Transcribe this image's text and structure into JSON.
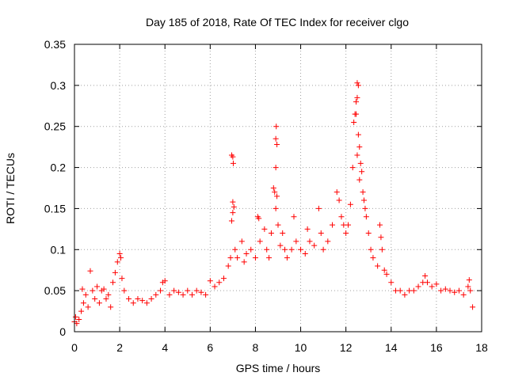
{
  "chart_data": {
    "type": "scatter",
    "title": "Day 185 of 2018, Rate Of TEC Index for receiver clgo",
    "xlabel": "GPS time / hours",
    "ylabel": "ROTI / TECUs",
    "xlim": [
      0,
      18
    ],
    "ylim": [
      0,
      0.35
    ],
    "xticks": [
      "0",
      "2",
      "4",
      "6",
      "8",
      "10",
      "12",
      "14",
      "16",
      "18"
    ],
    "yticks": [
      "0",
      "0.05",
      "0.1",
      "0.15",
      "0.2",
      "0.25",
      "0.3",
      "0.35"
    ],
    "grid": true,
    "marker": "+",
    "marker_color": "#ff0000",
    "series": [
      {
        "name": "ROTI",
        "points": [
          [
            0.0,
            0.012
          ],
          [
            0.05,
            0.018
          ],
          [
            0.1,
            0.01
          ],
          [
            0.2,
            0.015
          ],
          [
            0.3,
            0.025
          ],
          [
            0.35,
            0.052
          ],
          [
            0.4,
            0.035
          ],
          [
            0.5,
            0.045
          ],
          [
            0.6,
            0.03
          ],
          [
            0.7,
            0.074
          ],
          [
            0.8,
            0.05
          ],
          [
            0.9,
            0.04
          ],
          [
            1.0,
            0.055
          ],
          [
            1.1,
            0.035
          ],
          [
            1.2,
            0.05
          ],
          [
            1.3,
            0.052
          ],
          [
            1.4,
            0.04
          ],
          [
            1.5,
            0.045
          ],
          [
            1.6,
            0.03
          ],
          [
            1.7,
            0.06
          ],
          [
            1.8,
            0.072
          ],
          [
            1.9,
            0.085
          ],
          [
            2.0,
            0.095
          ],
          [
            2.05,
            0.09
          ],
          [
            2.1,
            0.065
          ],
          [
            2.2,
            0.05
          ],
          [
            2.4,
            0.04
          ],
          [
            2.6,
            0.035
          ],
          [
            2.8,
            0.04
          ],
          [
            3.0,
            0.038
          ],
          [
            3.2,
            0.035
          ],
          [
            3.4,
            0.04
          ],
          [
            3.6,
            0.045
          ],
          [
            3.8,
            0.05
          ],
          [
            3.9,
            0.06
          ],
          [
            4.0,
            0.062
          ],
          [
            4.2,
            0.045
          ],
          [
            4.4,
            0.05
          ],
          [
            4.6,
            0.048
          ],
          [
            4.8,
            0.045
          ],
          [
            5.0,
            0.05
          ],
          [
            5.2,
            0.045
          ],
          [
            5.4,
            0.05
          ],
          [
            5.6,
            0.048
          ],
          [
            5.8,
            0.045
          ],
          [
            6.0,
            0.062
          ],
          [
            6.2,
            0.055
          ],
          [
            6.4,
            0.06
          ],
          [
            6.6,
            0.065
          ],
          [
            6.8,
            0.08
          ],
          [
            6.9,
            0.09
          ],
          [
            6.95,
            0.215
          ],
          [
            7.0,
            0.213
          ],
          [
            7.02,
            0.205
          ],
          [
            7.0,
            0.158
          ],
          [
            7.05,
            0.152
          ],
          [
            7.0,
            0.145
          ],
          [
            6.95,
            0.135
          ],
          [
            7.1,
            0.1
          ],
          [
            7.2,
            0.09
          ],
          [
            7.4,
            0.11
          ],
          [
            7.5,
            0.085
          ],
          [
            7.6,
            0.095
          ],
          [
            7.8,
            0.1
          ],
          [
            8.0,
            0.09
          ],
          [
            8.1,
            0.14
          ],
          [
            8.15,
            0.138
          ],
          [
            8.2,
            0.11
          ],
          [
            8.4,
            0.125
          ],
          [
            8.5,
            0.1
          ],
          [
            8.6,
            0.09
          ],
          [
            8.7,
            0.12
          ],
          [
            8.8,
            0.175
          ],
          [
            8.85,
            0.17
          ],
          [
            8.9,
            0.235
          ],
          [
            8.92,
            0.25
          ],
          [
            8.95,
            0.228
          ],
          [
            8.9,
            0.2
          ],
          [
            8.95,
            0.165
          ],
          [
            8.9,
            0.15
          ],
          [
            9.0,
            0.13
          ],
          [
            9.1,
            0.105
          ],
          [
            9.2,
            0.12
          ],
          [
            9.3,
            0.1
          ],
          [
            9.4,
            0.09
          ],
          [
            9.6,
            0.1
          ],
          [
            9.7,
            0.14
          ],
          [
            9.8,
            0.11
          ],
          [
            10.0,
            0.1
          ],
          [
            10.2,
            0.095
          ],
          [
            10.3,
            0.125
          ],
          [
            10.4,
            0.11
          ],
          [
            10.6,
            0.105
          ],
          [
            10.8,
            0.15
          ],
          [
            10.9,
            0.12
          ],
          [
            11.0,
            0.1
          ],
          [
            11.2,
            0.11
          ],
          [
            11.4,
            0.13
          ],
          [
            11.6,
            0.17
          ],
          [
            11.7,
            0.16
          ],
          [
            11.8,
            0.14
          ],
          [
            11.9,
            0.13
          ],
          [
            12.0,
            0.12
          ],
          [
            12.1,
            0.13
          ],
          [
            12.2,
            0.155
          ],
          [
            12.3,
            0.2
          ],
          [
            12.35,
            0.255
          ],
          [
            12.4,
            0.265
          ],
          [
            12.45,
            0.28
          ],
          [
            12.5,
            0.303
          ],
          [
            12.55,
            0.3
          ],
          [
            12.5,
            0.285
          ],
          [
            12.45,
            0.265
          ],
          [
            12.55,
            0.24
          ],
          [
            12.6,
            0.225
          ],
          [
            12.5,
            0.215
          ],
          [
            12.65,
            0.205
          ],
          [
            12.7,
            0.195
          ],
          [
            12.6,
            0.185
          ],
          [
            12.75,
            0.17
          ],
          [
            12.8,
            0.16
          ],
          [
            12.85,
            0.15
          ],
          [
            12.9,
            0.14
          ],
          [
            13.0,
            0.12
          ],
          [
            13.1,
            0.1
          ],
          [
            13.2,
            0.09
          ],
          [
            13.4,
            0.08
          ],
          [
            13.5,
            0.13
          ],
          [
            13.55,
            0.115
          ],
          [
            13.6,
            0.1
          ],
          [
            13.7,
            0.075
          ],
          [
            13.8,
            0.07
          ],
          [
            14.0,
            0.06
          ],
          [
            14.2,
            0.05
          ],
          [
            14.4,
            0.05
          ],
          [
            14.6,
            0.045
          ],
          [
            14.8,
            0.05
          ],
          [
            15.0,
            0.05
          ],
          [
            15.2,
            0.055
          ],
          [
            15.4,
            0.06
          ],
          [
            15.5,
            0.068
          ],
          [
            15.6,
            0.06
          ],
          [
            15.8,
            0.055
          ],
          [
            16.0,
            0.058
          ],
          [
            16.2,
            0.05
          ],
          [
            16.4,
            0.052
          ],
          [
            16.6,
            0.05
          ],
          [
            16.8,
            0.048
          ],
          [
            17.0,
            0.05
          ],
          [
            17.2,
            0.045
          ],
          [
            17.4,
            0.055
          ],
          [
            17.45,
            0.063
          ],
          [
            17.5,
            0.05
          ],
          [
            17.6,
            0.03
          ]
        ]
      }
    ]
  }
}
